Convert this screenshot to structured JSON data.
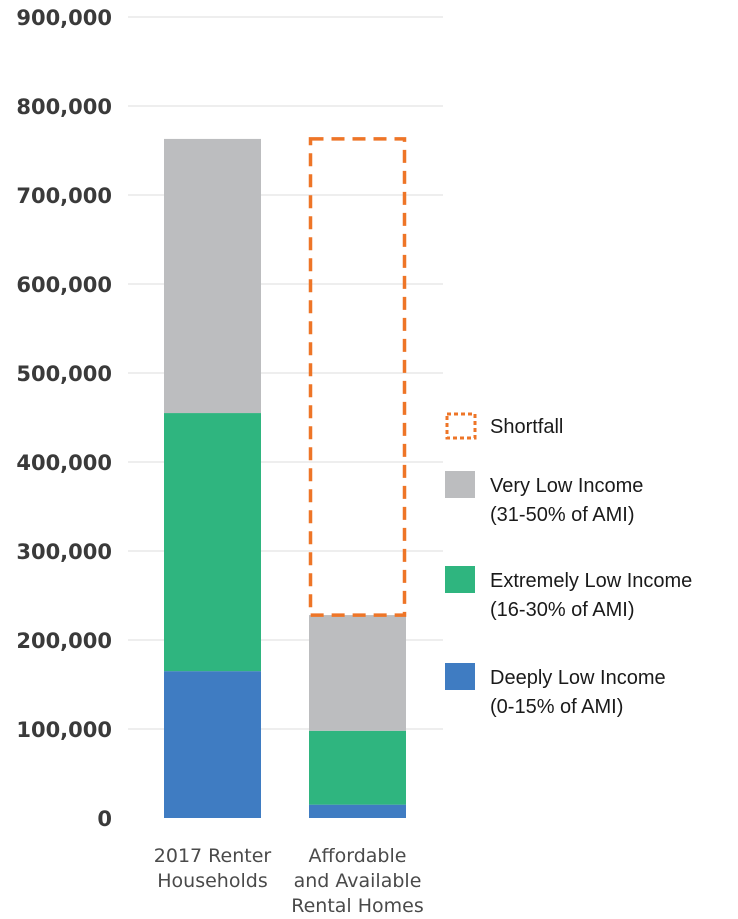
{
  "chart_data": {
    "type": "bar",
    "stacked": true,
    "ylim": [
      0,
      900000
    ],
    "yticks": [
      {
        "value": 0,
        "label": "0"
      },
      {
        "value": 100000,
        "label": "100,000"
      },
      {
        "value": 200000,
        "label": "200,000"
      },
      {
        "value": 300000,
        "label": "300,000"
      },
      {
        "value": 400000,
        "label": "400,000"
      },
      {
        "value": 500000,
        "label": "500,000"
      },
      {
        "value": 600000,
        "label": "600,000"
      },
      {
        "value": 700000,
        "label": "700,000"
      },
      {
        "value": 800000,
        "label": "800,000"
      },
      {
        "value": 900000,
        "label": "900,000"
      }
    ],
    "categories": [
      [
        "2017 Renter",
        "Households"
      ],
      [
        "Affordable",
        "and Available",
        "Rental Homes"
      ]
    ],
    "series": [
      {
        "name": "Deeply Low Income (0-15% of AMI)",
        "color": "#3f7cc2",
        "values": [
          165000,
          15000
        ]
      },
      {
        "name": "Extremely Low Income (16-30% of AMI)",
        "color": "#2fb57f",
        "values": [
          290000,
          83000
        ]
      },
      {
        "name": "Very Low Income (31-50% of AMI)",
        "color": "#bcbdbf",
        "values": [
          308000,
          130000
        ]
      }
    ],
    "shortfall": {
      "name": "Shortfall",
      "color": "#ee7527",
      "category_index": 1,
      "from": 228000,
      "to": 763000
    },
    "grid": true,
    "legend_position": "right"
  },
  "legend": [
    {
      "key": "shortfall",
      "lines": [
        "Shortfall"
      ]
    },
    {
      "key": "very_low",
      "color": "#bcbdbf",
      "lines": [
        "Very Low Income",
        "(31-50% of AMI)"
      ]
    },
    {
      "key": "extremely_low",
      "color": "#2fb57f",
      "lines": [
        "Extremely Low Income",
        "(16-30% of AMI)"
      ]
    },
    {
      "key": "deeply_low",
      "color": "#3f7cc2",
      "lines": [
        "Deeply Low Income",
        "(0-15% of AMI)"
      ]
    }
  ]
}
